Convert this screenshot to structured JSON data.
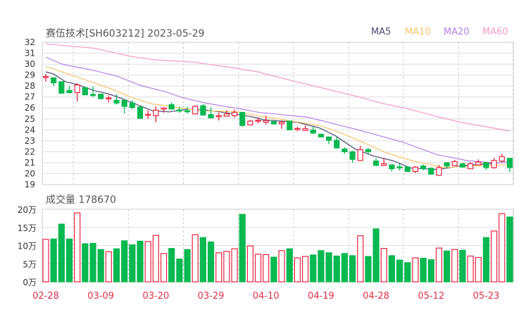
{
  "header": {
    "title": "赛伍技术[SH603212] 2023-05-29"
  },
  "chart_data": {
    "type": "candlestick",
    "title": "赛伍技术[SH603212] 2023-05-29",
    "ylim": [
      19,
      32
    ],
    "yticks": [
      "19",
      "20",
      "21",
      "22",
      "23",
      "24",
      "25",
      "26",
      "27",
      "28",
      "29",
      "30",
      "31",
      "32"
    ],
    "xticks": [
      {
        "index": 0,
        "label": "02-28"
      },
      {
        "index": 7,
        "label": "03-09"
      },
      {
        "index": 14,
        "label": "03-20"
      },
      {
        "index": 21,
        "label": "03-29"
      },
      {
        "index": 28,
        "label": "04-10"
      },
      {
        "index": 35,
        "label": "04-19"
      },
      {
        "index": 42,
        "label": "04-28"
      },
      {
        "index": 49,
        "label": "05-12"
      },
      {
        "index": 56,
        "label": "05-23"
      }
    ],
    "colors": {
      "up": "#e8233f",
      "down": "#08b850",
      "grid": "#dddddd",
      "border": "#cccccc"
    },
    "ohlc_fields": [
      "open",
      "high",
      "low",
      "close"
    ],
    "ohlc": [
      [
        28.82,
        29.1,
        28.4,
        28.87
      ],
      [
        28.75,
        28.75,
        28.0,
        28.3
      ],
      [
        28.4,
        28.4,
        27.3,
        27.35
      ],
      [
        27.6,
        28.0,
        27.3,
        27.4
      ],
      [
        27.4,
        28.25,
        26.6,
        28.1
      ],
      [
        27.85,
        27.9,
        27.2,
        27.2
      ],
      [
        27.23,
        27.95,
        27.0,
        27.2
      ],
      [
        27.25,
        27.3,
        26.8,
        26.85
      ],
      [
        26.88,
        27.15,
        26.5,
        26.92
      ],
      [
        26.7,
        27.25,
        26.3,
        26.45
      ],
      [
        26.7,
        26.75,
        25.5,
        26.15
      ],
      [
        26.45,
        26.7,
        25.9,
        26.05
      ],
      [
        26.1,
        26.1,
        25.0,
        25.05
      ],
      [
        25.37,
        25.8,
        25.0,
        25.42
      ],
      [
        25.3,
        26.15,
        24.7,
        25.8
      ],
      [
        25.9,
        26.0,
        25.55,
        26.0
      ],
      [
        26.3,
        26.5,
        25.85,
        25.9
      ],
      [
        25.82,
        26.1,
        25.55,
        25.78
      ],
      [
        25.75,
        26.1,
        25.5,
        25.65
      ],
      [
        25.45,
        26.25,
        25.4,
        26.15
      ],
      [
        26.2,
        26.35,
        25.3,
        25.35
      ],
      [
        25.4,
        26.05,
        25.05,
        25.1
      ],
      [
        25.2,
        25.55,
        24.85,
        25.3
      ],
      [
        25.25,
        25.8,
        25.2,
        25.45
      ],
      [
        25.3,
        25.85,
        25.1,
        25.6
      ],
      [
        25.6,
        25.6,
        24.3,
        24.4
      ],
      [
        24.45,
        24.9,
        24.45,
        24.8
      ],
      [
        24.82,
        25.1,
        24.6,
        24.88
      ],
      [
        24.7,
        25.3,
        24.5,
        24.85
      ],
      [
        24.75,
        24.85,
        24.45,
        24.55
      ],
      [
        24.55,
        24.85,
        24.1,
        24.7
      ],
      [
        24.8,
        24.8,
        24.0,
        24.0
      ],
      [
        24.07,
        24.3,
        23.9,
        24.12
      ],
      [
        23.95,
        24.4,
        23.9,
        24.1
      ],
      [
        23.97,
        24.3,
        23.65,
        23.7
      ],
      [
        23.6,
        23.65,
        23.3,
        23.35
      ],
      [
        23.35,
        23.35,
        22.7,
        23.05
      ],
      [
        23.05,
        23.35,
        22.3,
        22.35
      ],
      [
        22.25,
        22.4,
        21.8,
        22.0
      ],
      [
        22.0,
        22.1,
        21.0,
        21.3
      ],
      [
        21.2,
        22.55,
        21.2,
        22.2
      ],
      [
        22.2,
        22.35,
        21.85,
        22.0
      ],
      [
        21.15,
        21.4,
        20.7,
        20.75
      ],
      [
        20.75,
        21.45,
        20.7,
        20.9
      ],
      [
        20.8,
        20.8,
        20.2,
        20.45
      ],
      [
        20.62,
        20.9,
        20.3,
        20.58
      ],
      [
        20.6,
        20.6,
        20.2,
        20.2
      ],
      [
        20.2,
        20.7,
        20.05,
        20.6
      ],
      [
        20.7,
        20.85,
        20.3,
        20.45
      ],
      [
        20.5,
        20.55,
        19.95,
        19.95
      ],
      [
        19.85,
        20.8,
        19.85,
        20.55
      ],
      [
        21.0,
        21.05,
        20.55,
        20.7
      ],
      [
        20.75,
        21.25,
        20.75,
        21.1
      ],
      [
        20.9,
        21.0,
        20.55,
        20.6
      ],
      [
        20.45,
        21.05,
        20.45,
        20.9
      ],
      [
        20.8,
        21.3,
        20.8,
        21.05
      ],
      [
        21.0,
        21.05,
        20.35,
        20.55
      ],
      [
        20.55,
        21.45,
        20.45,
        21.2
      ],
      [
        21.15,
        21.8,
        21.05,
        21.55
      ],
      [
        21.4,
        21.4,
        20.15,
        20.55
      ]
    ],
    "moving_averages": [
      {
        "name": "MA5",
        "color": "#4b4b6e",
        "points": [
          [
            0,
            29.3
          ],
          [
            1,
            29.1
          ],
          [
            2.5,
            28.4
          ],
          [
            4,
            28.15
          ],
          [
            6.1,
            27.6
          ],
          [
            7.9,
            27.3
          ],
          [
            9.7,
            26.86
          ],
          [
            11.2,
            26.43
          ],
          [
            13.6,
            25.73
          ],
          [
            15.7,
            25.64
          ],
          [
            18.1,
            25.9
          ],
          [
            20.4,
            25.8
          ],
          [
            22.8,
            25.58
          ],
          [
            24.9,
            25.36
          ],
          [
            27.3,
            25.04
          ],
          [
            27.4,
            24.93
          ],
          [
            31.9,
            24.7
          ],
          [
            34.8,
            24.18
          ],
          [
            36.9,
            23.43
          ],
          [
            39.3,
            22.26
          ],
          [
            41.7,
            21.6
          ],
          [
            44.1,
            21.19
          ],
          [
            46.5,
            20.5
          ],
          [
            49.8,
            20.37
          ],
          [
            52.7,
            20.7
          ],
          [
            55.7,
            20.87
          ],
          [
            59,
            21.08
          ]
        ]
      },
      {
        "name": "MA10",
        "color": "#f7c46a",
        "points": [
          [
            0,
            29.8
          ],
          [
            3.7,
            28.9
          ],
          [
            6.1,
            28.3
          ],
          [
            8.5,
            27.7
          ],
          [
            10.9,
            26.97
          ],
          [
            13.3,
            26.4
          ],
          [
            15.7,
            26.15
          ],
          [
            18.1,
            25.9
          ],
          [
            20.4,
            25.73
          ],
          [
            24,
            25.68
          ],
          [
            27.3,
            25.25
          ],
          [
            27.4,
            25.25
          ],
          [
            31,
            24.83
          ],
          [
            34.8,
            24.4
          ],
          [
            37.8,
            23.65
          ],
          [
            40.2,
            22.9
          ],
          [
            43.2,
            21.94
          ],
          [
            46.5,
            21.19
          ],
          [
            50.7,
            20.55
          ],
          [
            54.2,
            20.7
          ],
          [
            59,
            20.82
          ]
        ]
      },
      {
        "name": "MA20",
        "color": "#b382e6",
        "points": [
          [
            0,
            30.65
          ],
          [
            2.2,
            29.97
          ],
          [
            6.1,
            29.43
          ],
          [
            9.1,
            28.9
          ],
          [
            12.1,
            28.04
          ],
          [
            15.1,
            27.5
          ],
          [
            17.5,
            26.93
          ],
          [
            20.4,
            26.43
          ],
          [
            24,
            26.0
          ],
          [
            27.3,
            25.58
          ],
          [
            27.4,
            25.58
          ],
          [
            33.3,
            25.15
          ],
          [
            39.3,
            24.08
          ],
          [
            45.3,
            22.9
          ],
          [
            49.8,
            21.72
          ],
          [
            53.6,
            21.19
          ],
          [
            57.2,
            20.97
          ],
          [
            59,
            21.08
          ]
        ]
      },
      {
        "name": "MA60",
        "color": "#f59ac6",
        "points": [
          [
            0,
            31.85
          ],
          [
            6.1,
            31.46
          ],
          [
            10.9,
            30.7
          ],
          [
            13.9,
            30.4
          ],
          [
            18.9,
            30.18
          ],
          [
            24,
            29.65
          ],
          [
            27.3,
            29.26
          ],
          [
            27.4,
            29.2
          ],
          [
            32.1,
            28.35
          ],
          [
            39.3,
            27.1
          ],
          [
            42.9,
            26.4
          ],
          [
            45.6,
            26.0
          ],
          [
            50.1,
            25.15
          ],
          [
            52.7,
            24.7
          ],
          [
            59,
            23.9
          ]
        ]
      }
    ],
    "volume": {
      "label": "成交量",
      "latest": "178670",
      "unit": "万",
      "ylim": [
        0,
        20
      ],
      "yticks": [
        "0万",
        "5万",
        "10万",
        "15万",
        "20万"
      ],
      "values": [
        11.7,
        11.8,
        15.9,
        11.8,
        19.0,
        10.5,
        10.6,
        8.9,
        8.3,
        9.1,
        11.3,
        10.2,
        11.2,
        11.1,
        12.8,
        7.8,
        9.2,
        6.3,
        8.9,
        13.0,
        12.2,
        11.0,
        8.0,
        8.4,
        9.1,
        18.6,
        9.9,
        7.6,
        7.5,
        6.8,
        8.6,
        9.1,
        6.6,
        7.0,
        7.4,
        8.6,
        8.0,
        7.1,
        7.8,
        7.2,
        12.7,
        7.0,
        14.6,
        9.2,
        7.2,
        6.0,
        5.3,
        6.6,
        6.5,
        6.1,
        9.3,
        8.5,
        8.9,
        8.7,
        7.1,
        6.7,
        12.2,
        14.0,
        18.8,
        17.87
      ]
    }
  }
}
